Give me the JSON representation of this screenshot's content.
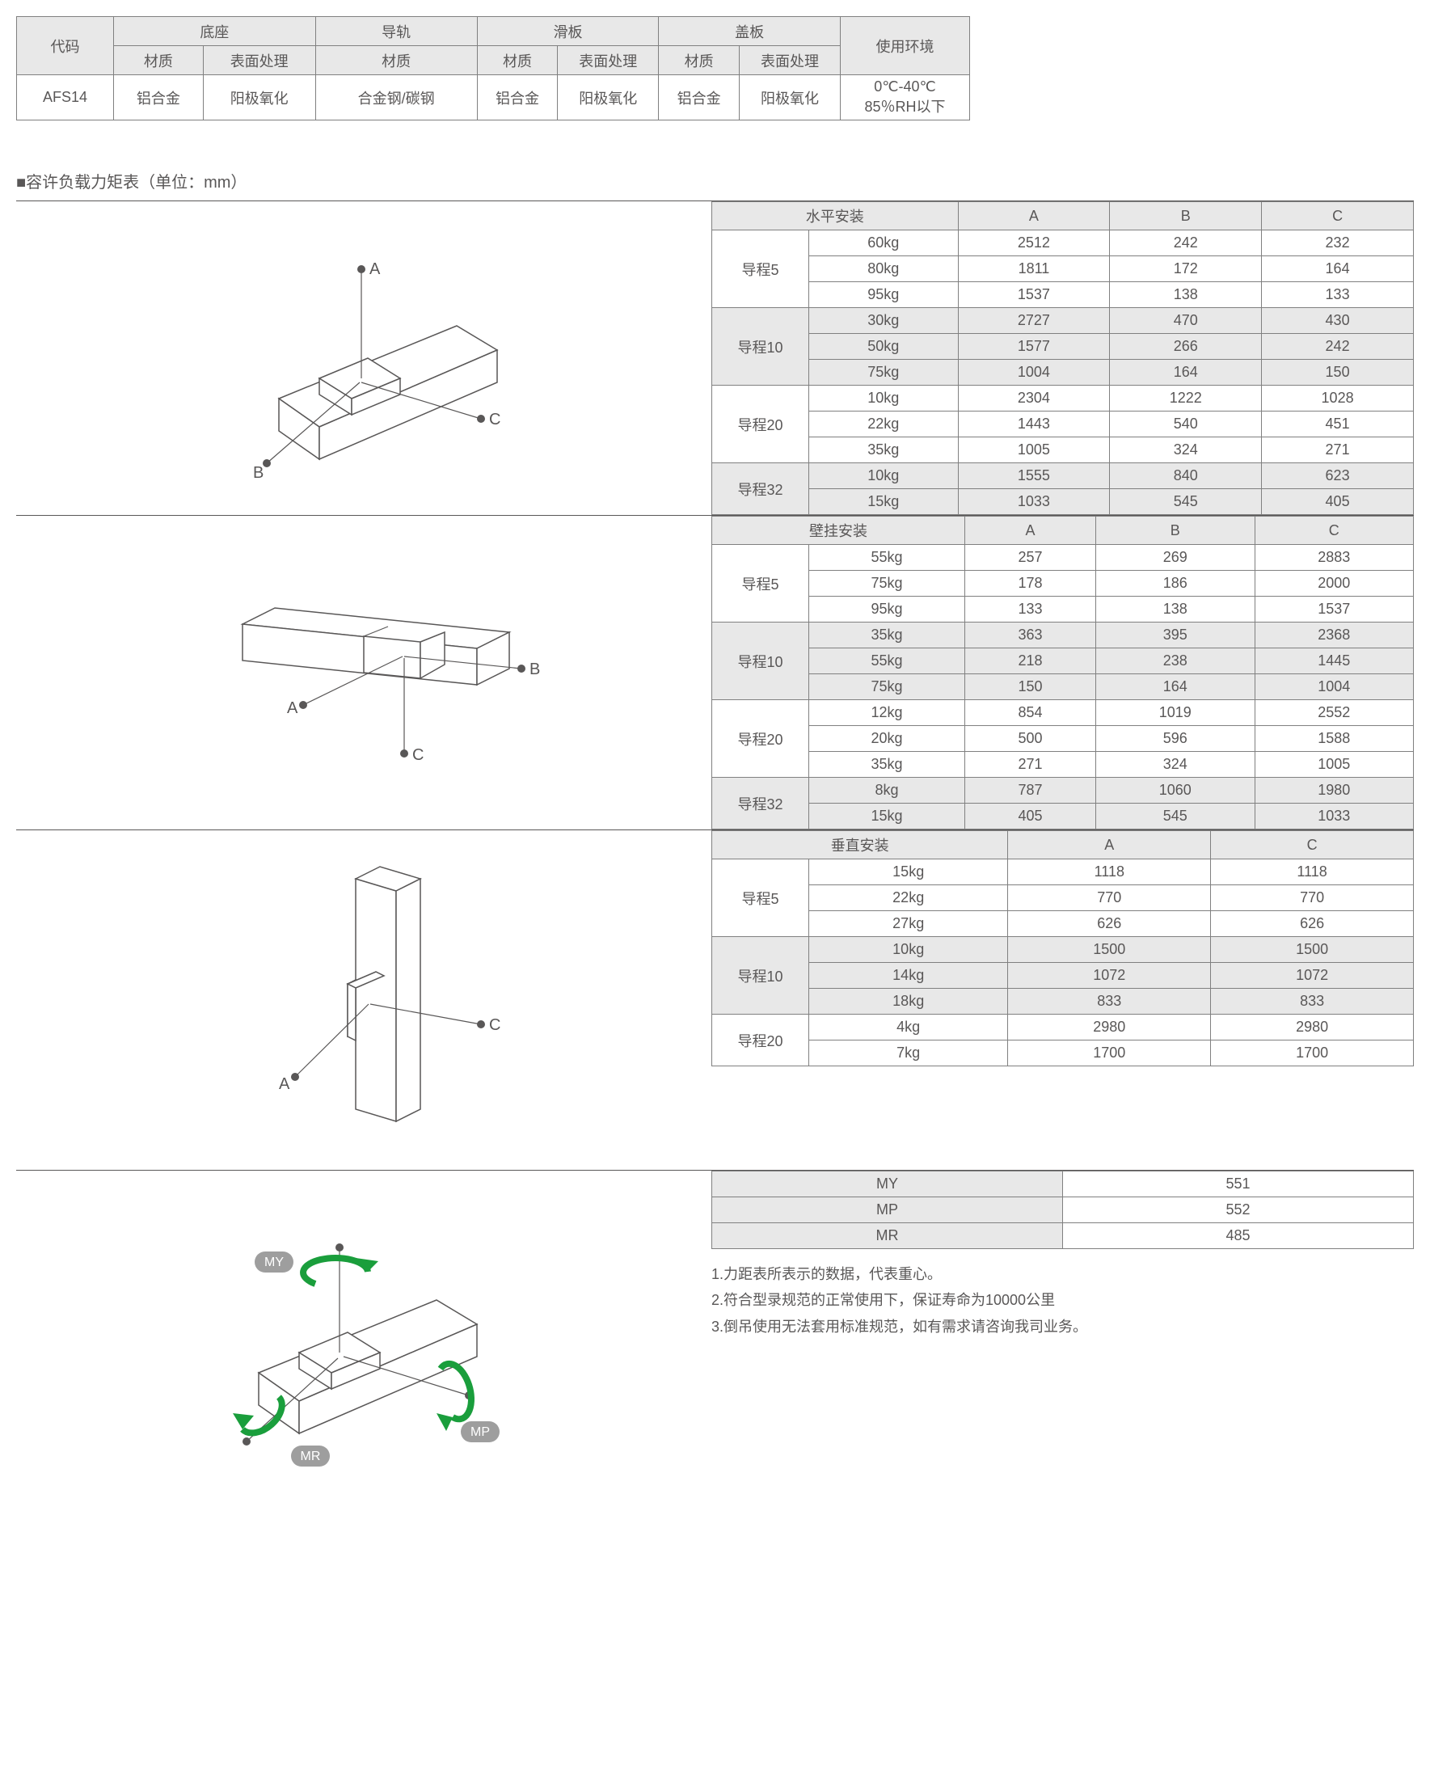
{
  "material_table": {
    "headers": {
      "code": "代码",
      "base": "底座",
      "rail": "导轨",
      "slide": "滑板",
      "cover": "盖板",
      "env": "使用环境",
      "material": "材质",
      "surface": "表面处理"
    },
    "row": {
      "code": "AFS14",
      "base_mat": "铝合金",
      "base_surf": "阳极氧化",
      "rail_mat": "合金钢/碳钢",
      "slide_mat": "铝合金",
      "slide_surf": "阳极氧化",
      "cover_mat": "铝合金",
      "cover_surf": "阳极氧化",
      "env": "0℃-40℃\n85％RH以下"
    }
  },
  "section_title": "■容许负载力矩表（单位：mm）",
  "tables": {
    "horizontal": {
      "title": "水平安装",
      "cols": [
        "A",
        "B",
        "C"
      ],
      "groups": [
        {
          "lead": "导程5",
          "shade": false,
          "rows": [
            [
              "60kg",
              "2512",
              "242",
              "232"
            ],
            [
              "80kg",
              "1811",
              "172",
              "164"
            ],
            [
              "95kg",
              "1537",
              "138",
              "133"
            ]
          ]
        },
        {
          "lead": "导程10",
          "shade": true,
          "rows": [
            [
              "30kg",
              "2727",
              "470",
              "430"
            ],
            [
              "50kg",
              "1577",
              "266",
              "242"
            ],
            [
              "75kg",
              "1004",
              "164",
              "150"
            ]
          ]
        },
        {
          "lead": "导程20",
          "shade": false,
          "rows": [
            [
              "10kg",
              "2304",
              "1222",
              "1028"
            ],
            [
              "22kg",
              "1443",
              "540",
              "451"
            ],
            [
              "35kg",
              "1005",
              "324",
              "271"
            ]
          ]
        },
        {
          "lead": "导程32",
          "shade": true,
          "rows": [
            [
              "10kg",
              "1555",
              "840",
              "623"
            ],
            [
              "15kg",
              "1033",
              "545",
              "405"
            ]
          ]
        }
      ]
    },
    "wall": {
      "title": "壁挂安装",
      "cols": [
        "A",
        "B",
        "C"
      ],
      "groups": [
        {
          "lead": "导程5",
          "shade": false,
          "rows": [
            [
              "55kg",
              "257",
              "269",
              "2883"
            ],
            [
              "75kg",
              "178",
              "186",
              "2000"
            ],
            [
              "95kg",
              "133",
              "138",
              "1537"
            ]
          ]
        },
        {
          "lead": "导程10",
          "shade": true,
          "rows": [
            [
              "35kg",
              "363",
              "395",
              "2368"
            ],
            [
              "55kg",
              "218",
              "238",
              "1445"
            ],
            [
              "75kg",
              "150",
              "164",
              "1004"
            ]
          ]
        },
        {
          "lead": "导程20",
          "shade": false,
          "rows": [
            [
              "12kg",
              "854",
              "1019",
              "2552"
            ],
            [
              "20kg",
              "500",
              "596",
              "1588"
            ],
            [
              "35kg",
              "271",
              "324",
              "1005"
            ]
          ]
        },
        {
          "lead": "导程32",
          "shade": true,
          "rows": [
            [
              "8kg",
              "787",
              "1060",
              "1980"
            ],
            [
              "15kg",
              "405",
              "545",
              "1033"
            ]
          ]
        }
      ]
    },
    "vertical": {
      "title": "垂直安装",
      "cols": [
        "A",
        "C"
      ],
      "groups": [
        {
          "lead": "导程5",
          "shade": false,
          "rows": [
            [
              "15kg",
              "1118",
              "1118"
            ],
            [
              "22kg",
              "770",
              "770"
            ],
            [
              "27kg",
              "626",
              "626"
            ]
          ]
        },
        {
          "lead": "导程10",
          "shade": true,
          "rows": [
            [
              "10kg",
              "1500",
              "1500"
            ],
            [
              "14kg",
              "1072",
              "1072"
            ],
            [
              "18kg",
              "833",
              "833"
            ]
          ]
        },
        {
          "lead": "导程20",
          "shade": false,
          "rows": [
            [
              "4kg",
              "2980",
              "2980"
            ],
            [
              "7kg",
              "1700",
              "1700"
            ]
          ]
        }
      ]
    }
  },
  "moment_table": {
    "rows": [
      [
        "MY",
        "551"
      ],
      [
        "MP",
        "552"
      ],
      [
        "MR",
        "485"
      ]
    ]
  },
  "notes": [
    "1.力距表所表示的数据，代表重心。",
    "2.符合型录规范的正常使用下，保证寿命为10000公里",
    "3.倒吊使用无法套用标准规范，如有需求请咨询我司业务。"
  ],
  "diagram_labels": {
    "A": "A",
    "B": "B",
    "C": "C",
    "MY": "MY",
    "MP": "MP",
    "MR": "MR"
  },
  "colors": {
    "line": "#595757",
    "shade": "#e8e8e8",
    "green": "#1a9e3c",
    "pill": "#9e9e9e",
    "bg": "#ffffff"
  }
}
